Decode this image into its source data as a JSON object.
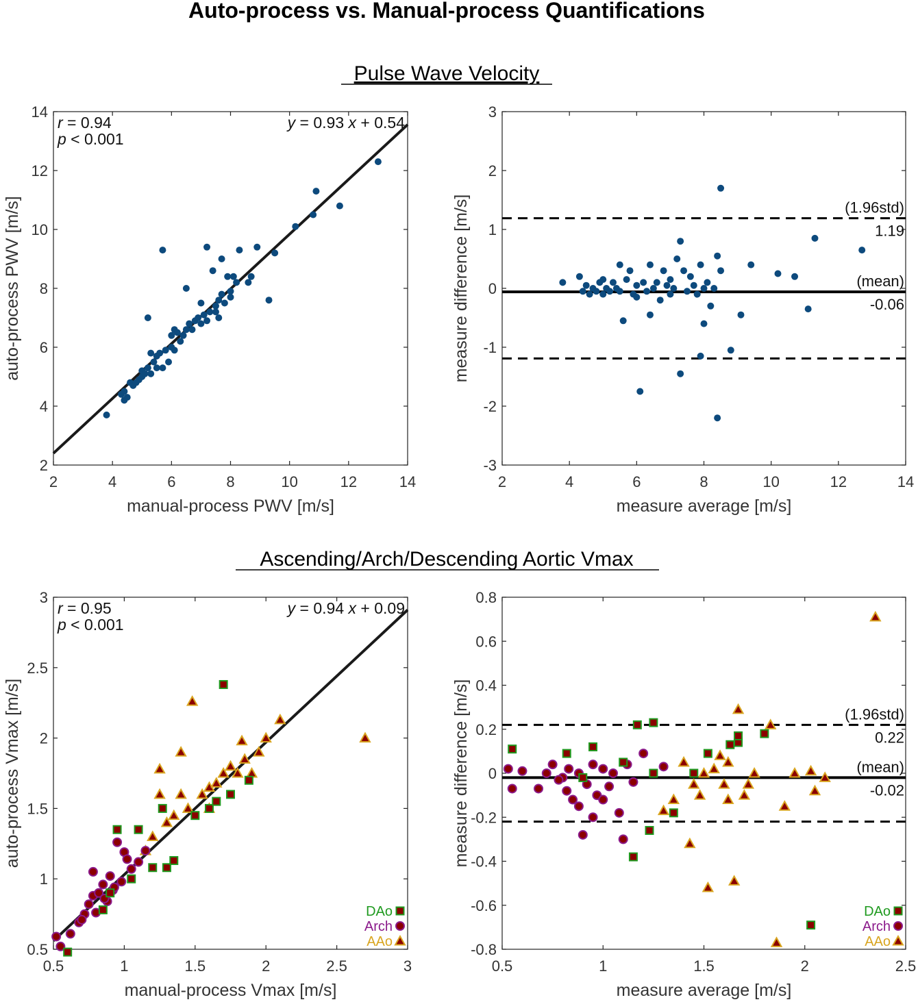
{
  "figure": {
    "title": "Auto-process vs. Manual-process Quantifications",
    "section_titles": [
      "Pulse Wave Velocity",
      "Ascending/Arch/Descending Aortic Vmax"
    ]
  },
  "colors": {
    "pwv_points": "#0d4a7d",
    "fit_line": "#1a1a1a",
    "marker_fill": "#8b0000",
    "dao": "#1f9a1f",
    "arch": "#8b1a8b",
    "aao": "#d9a520"
  },
  "chart_data": [
    {
      "id": "pwv_scatter",
      "type": "scatter",
      "xlabel": "manual-process PWV [m/s]",
      "ylabel": "auto-process PWV [m/s]",
      "xlim": [
        2,
        14
      ],
      "ylim": [
        2,
        14
      ],
      "xticks": [
        2,
        4,
        6,
        8,
        10,
        12,
        14
      ],
      "yticks": [
        2,
        4,
        6,
        8,
        10,
        12,
        14
      ],
      "stats": {
        "r_sym": "r",
        "r_val": " = 0.94",
        "p_sym": "p",
        "p_val": " < 0.001",
        "eq_y": "y",
        "eq_mid": " = 0.93 ",
        "eq_x": "x",
        "eq_end": " + 0.54"
      },
      "fit": {
        "slope": 0.93,
        "intercept": 0.54
      },
      "points": [
        [
          3.8,
          3.7
        ],
        [
          4.3,
          4.4
        ],
        [
          4.4,
          4.2
        ],
        [
          4.4,
          4.5
        ],
        [
          4.5,
          4.3
        ],
        [
          4.6,
          4.8
        ],
        [
          4.7,
          4.7
        ],
        [
          4.8,
          4.8
        ],
        [
          4.9,
          4.9
        ],
        [
          5.0,
          5.0
        ],
        [
          5.0,
          5.2
        ],
        [
          5.1,
          5.1
        ],
        [
          5.2,
          5.3
        ],
        [
          5.2,
          7.0
        ],
        [
          5.3,
          5.1
        ],
        [
          5.3,
          5.8
        ],
        [
          5.4,
          5.5
        ],
        [
          5.5,
          5.3
        ],
        [
          5.5,
          5.7
        ],
        [
          5.6,
          5.8
        ],
        [
          5.7,
          5.3
        ],
        [
          5.7,
          9.3
        ],
        [
          5.8,
          5.9
        ],
        [
          5.9,
          5.5
        ],
        [
          6.0,
          6.0
        ],
        [
          6.0,
          6.4
        ],
        [
          6.1,
          6.6
        ],
        [
          6.1,
          5.9
        ],
        [
          6.2,
          6.5
        ],
        [
          6.3,
          6.2
        ],
        [
          6.4,
          6.4
        ],
        [
          6.5,
          6.6
        ],
        [
          6.5,
          8.0
        ],
        [
          6.6,
          6.8
        ],
        [
          6.7,
          6.6
        ],
        [
          6.8,
          6.9
        ],
        [
          6.9,
          7.0
        ],
        [
          7.0,
          6.8
        ],
        [
          7.0,
          7.5
        ],
        [
          7.1,
          7.1
        ],
        [
          7.2,
          6.9
        ],
        [
          7.2,
          9.4
        ],
        [
          7.3,
          7.2
        ],
        [
          7.4,
          8.6
        ],
        [
          7.5,
          7.4
        ],
        [
          7.5,
          7.2
        ],
        [
          7.6,
          7.6
        ],
        [
          7.6,
          7.0
        ],
        [
          7.7,
          7.8
        ],
        [
          7.7,
          9.0
        ],
        [
          7.8,
          7.5
        ],
        [
          7.9,
          8.4
        ],
        [
          8.0,
          7.9
        ],
        [
          8.0,
          7.7
        ],
        [
          8.1,
          8.4
        ],
        [
          8.2,
          8.2
        ],
        [
          8.3,
          9.3
        ],
        [
          8.6,
          8.2
        ],
        [
          8.7,
          8.4
        ],
        [
          8.9,
          9.4
        ],
        [
          9.3,
          7.6
        ],
        [
          9.5,
          9.2
        ],
        [
          10.2,
          10.1
        ],
        [
          10.8,
          10.5
        ],
        [
          10.9,
          11.3
        ],
        [
          11.7,
          10.8
        ],
        [
          13.0,
          12.3
        ]
      ]
    },
    {
      "id": "pwv_blandaltman",
      "type": "scatter",
      "xlabel": "measure average [m/s]",
      "ylabel": "measure difference [m/s]",
      "xlim": [
        2,
        14
      ],
      "ylim": [
        -3,
        3
      ],
      "xticks": [
        2,
        4,
        6,
        8,
        10,
        12,
        14
      ],
      "yticks": [
        -3,
        -2,
        -1,
        0,
        1,
        2,
        3
      ],
      "mean": -0.06,
      "sd196_upper": 1.19,
      "sd196_lower": -1.19,
      "labels": {
        "std": "(1.96std)",
        "std_val": "1.19",
        "mean": "(mean)",
        "mean_val": "-0.06"
      },
      "points": [
        [
          3.8,
          0.1
        ],
        [
          4.3,
          0.2
        ],
        [
          4.4,
          -0.05
        ],
        [
          4.5,
          0.05
        ],
        [
          4.6,
          -0.1
        ],
        [
          4.7,
          0.0
        ],
        [
          4.8,
          -0.05
        ],
        [
          4.9,
          0.1
        ],
        [
          5.0,
          -0.1
        ],
        [
          5.0,
          0.15
        ],
        [
          5.1,
          0.0
        ],
        [
          5.2,
          -0.05
        ],
        [
          5.3,
          0.1
        ],
        [
          5.4,
          0.0
        ],
        [
          5.5,
          0.4
        ],
        [
          5.5,
          -0.05
        ],
        [
          5.6,
          -0.55
        ],
        [
          5.7,
          0.15
        ],
        [
          5.8,
          0.3
        ],
        [
          5.9,
          -0.1
        ],
        [
          6.0,
          0.05
        ],
        [
          6.0,
          -0.15
        ],
        [
          6.1,
          -1.75
        ],
        [
          6.2,
          0.1
        ],
        [
          6.3,
          -0.05
        ],
        [
          6.4,
          0.4
        ],
        [
          6.4,
          -0.45
        ],
        [
          6.5,
          0.0
        ],
        [
          6.6,
          0.1
        ],
        [
          6.7,
          -0.2
        ],
        [
          6.8,
          0.3
        ],
        [
          6.9,
          0.05
        ],
        [
          7.0,
          -0.1
        ],
        [
          7.0,
          0.15
        ],
        [
          7.1,
          0.0
        ],
        [
          7.2,
          0.5
        ],
        [
          7.3,
          0.8
        ],
        [
          7.3,
          -1.45
        ],
        [
          7.4,
          0.3
        ],
        [
          7.5,
          -0.05
        ],
        [
          7.6,
          0.2
        ],
        [
          7.7,
          0.05
        ],
        [
          7.8,
          -0.1
        ],
        [
          7.9,
          0.4
        ],
        [
          8.0,
          0.0
        ],
        [
          8.0,
          -0.6
        ],
        [
          8.1,
          0.1
        ],
        [
          8.2,
          -0.3
        ],
        [
          8.3,
          0.0
        ],
        [
          8.4,
          0.55
        ],
        [
          8.4,
          -2.2
        ],
        [
          8.5,
          0.3
        ],
        [
          8.5,
          1.7
        ],
        [
          8.8,
          -1.05
        ],
        [
          9.1,
          -0.45
        ],
        [
          9.4,
          0.4
        ],
        [
          10.2,
          0.25
        ],
        [
          10.7,
          0.2
        ],
        [
          11.1,
          -0.35
        ],
        [
          11.3,
          0.85
        ],
        [
          12.7,
          0.65
        ],
        [
          7.9,
          -1.15
        ]
      ]
    },
    {
      "id": "vmax_scatter",
      "type": "scatter",
      "xlabel": "manual-process Vmax [m/s]",
      "ylabel": "auto-process Vmax [m/s]",
      "xlim": [
        0.5,
        3
      ],
      "ylim": [
        0.5,
        3
      ],
      "xticks": [
        0.5,
        1,
        1.5,
        2,
        2.5,
        3
      ],
      "yticks": [
        0.5,
        1,
        1.5,
        2,
        2.5,
        3
      ],
      "stats": {
        "r_sym": "r",
        "r_val": " = 0.95",
        "p_sym": "p",
        "p_val": " < 0.001",
        "eq_y": "y",
        "eq_mid": " = 0.94 ",
        "eq_x": "x",
        "eq_end": " + 0.09"
      },
      "fit": {
        "slope": 0.94,
        "intercept": 0.09
      },
      "legend": [
        "DAo",
        "Arch",
        "AAo"
      ],
      "series": [
        {
          "name": "DAo",
          "marker": "square",
          "points": [
            [
              0.6,
              0.48
            ],
            [
              0.85,
              0.78
            ],
            [
              0.95,
              1.35
            ],
            [
              1.1,
              1.35
            ],
            [
              1.2,
              1.08
            ],
            [
              1.27,
              1.5
            ],
            [
              1.3,
              1.08
            ],
            [
              1.35,
              1.13
            ],
            [
              1.6,
              1.5
            ],
            [
              1.7,
              2.38
            ],
            [
              1.75,
              1.6
            ],
            [
              1.88,
              1.7
            ],
            [
              0.9,
              0.9
            ],
            [
              1.05,
              1.0
            ],
            [
              1.5,
              1.45
            ],
            [
              1.65,
              1.55
            ]
          ]
        },
        {
          "name": "Arch",
          "marker": "circle",
          "points": [
            [
              0.52,
              0.59
            ],
            [
              0.55,
              0.52
            ],
            [
              0.62,
              0.61
            ],
            [
              0.68,
              0.69
            ],
            [
              0.72,
              0.75
            ],
            [
              0.75,
              0.82
            ],
            [
              0.78,
              0.88
            ],
            [
              0.8,
              0.76
            ],
            [
              0.82,
              0.9
            ],
            [
              0.85,
              0.96
            ],
            [
              0.88,
              0.84
            ],
            [
              0.9,
              1.02
            ],
            [
              0.92,
              0.92
            ],
            [
              0.95,
              1.26
            ],
            [
              1.0,
              1.19
            ],
            [
              1.02,
              1.14
            ],
            [
              0.98,
              0.98
            ],
            [
              1.05,
              1.07
            ],
            [
              1.1,
              1.12
            ],
            [
              1.15,
              1.2
            ],
            [
              0.78,
              1.05
            ],
            [
              0.7,
              0.71
            ],
            [
              0.86,
              0.86
            ],
            [
              0.93,
              0.94
            ]
          ]
        },
        {
          "name": "AAo",
          "marker": "triangle",
          "points": [
            [
              1.25,
              1.78
            ],
            [
              1.25,
              1.6
            ],
            [
              1.4,
              1.9
            ],
            [
              1.48,
              2.26
            ],
            [
              1.6,
              1.65
            ],
            [
              1.7,
              1.75
            ],
            [
              1.8,
              1.75
            ],
            [
              1.83,
              1.98
            ],
            [
              1.9,
              1.75
            ],
            [
              2.0,
              2.0
            ],
            [
              2.1,
              2.13
            ],
            [
              2.7,
              2.0
            ],
            [
              1.4,
              1.6
            ],
            [
              1.55,
              1.6
            ],
            [
              1.3,
              1.4
            ],
            [
              1.2,
              1.3
            ],
            [
              1.35,
              1.45
            ],
            [
              1.45,
              1.5
            ],
            [
              1.65,
              1.68
            ],
            [
              1.75,
              1.8
            ],
            [
              1.85,
              1.85
            ],
            [
              1.95,
              1.9
            ],
            [
              1.15,
              1.2
            ],
            [
              1.6,
              1.5
            ]
          ]
        }
      ]
    },
    {
      "id": "vmax_blandaltman",
      "type": "scatter",
      "xlabel": "measure average [m/s]",
      "ylabel": "measure difference [m/s]",
      "xlim": [
        0.5,
        2.5
      ],
      "ylim": [
        -0.8,
        0.8
      ],
      "xticks": [
        0.5,
        1,
        1.5,
        2,
        2.5
      ],
      "yticks": [
        -0.8,
        -0.6,
        -0.4,
        -0.2,
        0,
        0.2,
        0.4,
        0.6,
        0.8
      ],
      "mean": -0.02,
      "sd196_upper": 0.22,
      "sd196_lower": -0.22,
      "labels": {
        "std": "(1.96std)",
        "std_val": "0.22",
        "mean": "(mean)",
        "mean_val": "-0.02"
      },
      "legend": [
        "DAo",
        "Arch",
        "AAo"
      ],
      "series": [
        {
          "name": "DAo",
          "marker": "square",
          "points": [
            [
              0.55,
              0.11
            ],
            [
              0.82,
              0.09
            ],
            [
              0.95,
              0.12
            ],
            [
              1.1,
              0.05
            ],
            [
              1.17,
              0.22
            ],
            [
              1.23,
              -0.26
            ],
            [
              1.25,
              0.23
            ],
            [
              1.35,
              -0.18
            ],
            [
              1.15,
              -0.38
            ],
            [
              1.52,
              0.09
            ],
            [
              1.63,
              0.13
            ],
            [
              1.67,
              0.14
            ],
            [
              1.67,
              0.17
            ],
            [
              1.8,
              0.18
            ],
            [
              2.03,
              -0.69
            ],
            [
              1.25,
              0.0
            ],
            [
              1.45,
              0.0
            ],
            [
              0.9,
              -0.02
            ]
          ]
        },
        {
          "name": "Arch",
          "marker": "circle",
          "points": [
            [
              0.53,
              0.02
            ],
            [
              0.55,
              -0.07
            ],
            [
              0.6,
              0.01
            ],
            [
              0.68,
              -0.07
            ],
            [
              0.72,
              0.0
            ],
            [
              0.75,
              0.04
            ],
            [
              0.8,
              -0.02
            ],
            [
              0.82,
              -0.08
            ],
            [
              0.85,
              -0.12
            ],
            [
              0.88,
              -0.15
            ],
            [
              0.9,
              -0.28
            ],
            [
              0.92,
              -0.05
            ],
            [
              0.95,
              -0.2
            ],
            [
              0.97,
              -0.1
            ],
            [
              1.0,
              -0.12
            ],
            [
              1.03,
              -0.06
            ],
            [
              1.08,
              -0.18
            ],
            [
              1.1,
              -0.3
            ],
            [
              1.12,
              0.04
            ],
            [
              1.2,
              0.09
            ],
            [
              1.3,
              0.03
            ],
            [
              0.78,
              -0.03
            ],
            [
              0.95,
              0.04
            ],
            [
              1.05,
              0.0
            ],
            [
              1.15,
              -0.04
            ],
            [
              0.88,
              0.0
            ],
            [
              1.0,
              0.02
            ],
            [
              0.83,
              0.02
            ]
          ]
        },
        {
          "name": "AAo",
          "marker": "triangle",
          "points": [
            [
              1.3,
              -0.17
            ],
            [
              1.35,
              -0.12
            ],
            [
              1.43,
              -0.32
            ],
            [
              1.48,
              -0.1
            ],
            [
              1.52,
              -0.52
            ],
            [
              1.55,
              0.02
            ],
            [
              1.6,
              -0.05
            ],
            [
              1.62,
              -0.12
            ],
            [
              1.65,
              -0.49
            ],
            [
              1.67,
              0.29
            ],
            [
              1.7,
              -0.1
            ],
            [
              1.75,
              0.0
            ],
            [
              1.83,
              0.22
            ],
            [
              1.86,
              -0.77
            ],
            [
              1.9,
              -0.15
            ],
            [
              2.03,
              0.01
            ],
            [
              2.1,
              -0.02
            ],
            [
              2.35,
              0.71
            ],
            [
              1.4,
              0.05
            ],
            [
              1.5,
              0.0
            ],
            [
              1.58,
              0.08
            ],
            [
              1.72,
              -0.05
            ],
            [
              1.95,
              0.0
            ],
            [
              2.05,
              -0.08
            ],
            [
              1.45,
              -0.05
            ],
            [
              1.62,
              0.05
            ]
          ]
        }
      ]
    }
  ]
}
